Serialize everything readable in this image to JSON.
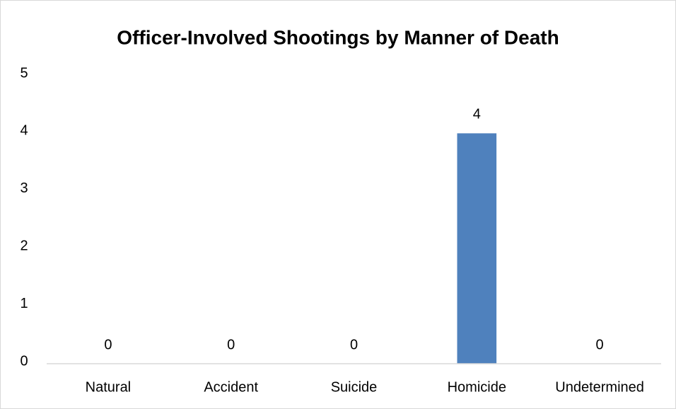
{
  "chart_data": {
    "type": "bar",
    "title": "Officer-Involved Shootings by Manner of Death",
    "categories": [
      "Natural",
      "Accident",
      "Suicide",
      "Homicide",
      "Undetermined"
    ],
    "values": [
      0,
      0,
      0,
      4,
      0
    ],
    "color": "#4f81bd",
    "ylim": [
      0,
      5
    ],
    "yticks": [
      0,
      1,
      2,
      3,
      4,
      5
    ],
    "grid": false,
    "data_labels": true
  }
}
